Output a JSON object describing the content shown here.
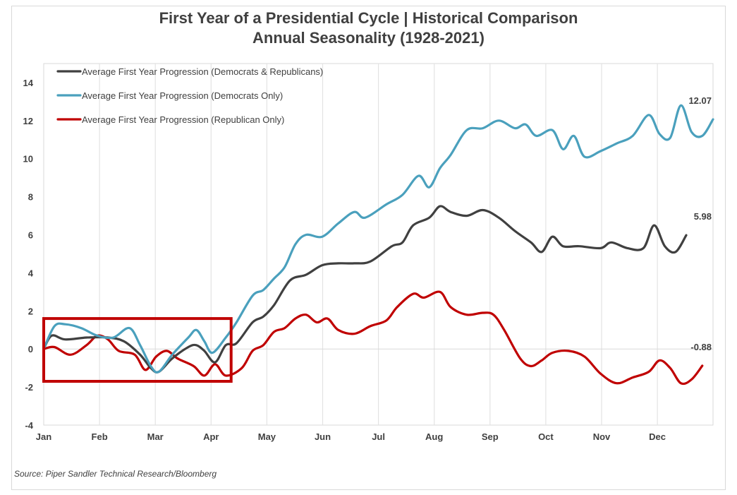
{
  "chart_data": {
    "type": "line",
    "title": "First  Year of a Presidential Cycle | Historical Comparison",
    "subtitle": "Annual Seasonality (1928-2021)",
    "source": "Source: Piper Sandler Technical Research/Bloomberg",
    "xlabel": "",
    "ylabel": "",
    "x_ticks": [
      "Jan",
      "Feb",
      "Mar",
      "Apr",
      "May",
      "Jun",
      "Jul",
      "Aug",
      "Sep",
      "Oct",
      "Nov",
      "Dec"
    ],
    "y_ticks": [
      "14",
      "12",
      "10",
      "8",
      "6",
      "4",
      "2",
      "0",
      "-2",
      "-4"
    ],
    "ylim": [
      -4,
      15
    ],
    "xlim": [
      0,
      12
    ],
    "grid": "vertical",
    "legend_position": "top-left",
    "highlight_box": {
      "x_range": [
        0,
        3.5
      ],
      "y_range": [
        -1.7,
        1.6
      ],
      "color": "#c00000"
    },
    "series": [
      {
        "name": "Average First Year Progression (Democrats & Republicans)",
        "color": "#404040",
        "end_label": "5.98",
        "points": [
          [
            0,
            0
          ],
          [
            0.15,
            0.7
          ],
          [
            0.4,
            0.5
          ],
          [
            0.8,
            0.6
          ],
          [
            1.2,
            0.6
          ],
          [
            1.5,
            0.4
          ],
          [
            1.8,
            -0.3
          ],
          [
            2.0,
            -1.0
          ],
          [
            2.15,
            -1.2
          ],
          [
            2.4,
            -0.5
          ],
          [
            2.7,
            0.1
          ],
          [
            2.85,
            0.2
          ],
          [
            3.0,
            -0.1
          ],
          [
            3.2,
            -0.7
          ],
          [
            3.4,
            0.2
          ],
          [
            3.6,
            0.3
          ],
          [
            3.9,
            1.4
          ],
          [
            4.1,
            1.7
          ],
          [
            4.3,
            2.3
          ],
          [
            4.6,
            3.6
          ],
          [
            4.9,
            3.9
          ],
          [
            5.2,
            4.4
          ],
          [
            5.5,
            4.5
          ],
          [
            5.8,
            4.5
          ],
          [
            6.1,
            4.6
          ],
          [
            6.5,
            5.4
          ],
          [
            6.7,
            5.6
          ],
          [
            6.9,
            6.5
          ],
          [
            7.2,
            6.9
          ],
          [
            7.4,
            7.5
          ],
          [
            7.6,
            7.2
          ],
          [
            7.9,
            7.0
          ],
          [
            8.2,
            7.3
          ],
          [
            8.5,
            6.9
          ],
          [
            8.8,
            6.2
          ],
          [
            9.1,
            5.6
          ],
          [
            9.3,
            5.1
          ],
          [
            9.5,
            5.9
          ],
          [
            9.7,
            5.4
          ],
          [
            10.0,
            5.4
          ],
          [
            10.4,
            5.3
          ],
          [
            10.6,
            5.6
          ],
          [
            10.9,
            5.3
          ],
          [
            11.2,
            5.3
          ],
          [
            11.4,
            6.5
          ],
          [
            11.6,
            5.4
          ],
          [
            11.8,
            5.1
          ],
          [
            12.0,
            5.98
          ]
        ]
      },
      {
        "name": "Average First Year Progression (Democrats Only)",
        "color": "#4aa0bd",
        "end_label": "12.07",
        "points": [
          [
            0,
            0
          ],
          [
            0.2,
            1.2
          ],
          [
            0.4,
            1.3
          ],
          [
            0.7,
            1.1
          ],
          [
            1.0,
            0.7
          ],
          [
            1.3,
            0.6
          ],
          [
            1.6,
            1.1
          ],
          [
            1.8,
            0.2
          ],
          [
            2.0,
            -0.9
          ],
          [
            2.15,
            -1.2
          ],
          [
            2.4,
            -0.3
          ],
          [
            2.7,
            0.6
          ],
          [
            2.85,
            1.0
          ],
          [
            3.0,
            0.4
          ],
          [
            3.15,
            -0.2
          ],
          [
            3.4,
            0.6
          ],
          [
            3.6,
            1.4
          ],
          [
            3.9,
            2.8
          ],
          [
            4.1,
            3.1
          ],
          [
            4.3,
            3.7
          ],
          [
            4.5,
            4.3
          ],
          [
            4.7,
            5.5
          ],
          [
            4.9,
            6.0
          ],
          [
            5.2,
            5.9
          ],
          [
            5.5,
            6.6
          ],
          [
            5.8,
            7.2
          ],
          [
            6.0,
            6.9
          ],
          [
            6.4,
            7.6
          ],
          [
            6.7,
            8.1
          ],
          [
            7.0,
            9.1
          ],
          [
            7.2,
            8.5
          ],
          [
            7.4,
            9.5
          ],
          [
            7.6,
            10.2
          ],
          [
            7.9,
            11.5
          ],
          [
            8.2,
            11.6
          ],
          [
            8.5,
            12.0
          ],
          [
            8.8,
            11.6
          ],
          [
            9.0,
            11.8
          ],
          [
            9.2,
            11.2
          ],
          [
            9.5,
            11.5
          ],
          [
            9.7,
            10.5
          ],
          [
            9.9,
            11.2
          ],
          [
            10.1,
            10.1
          ],
          [
            10.4,
            10.4
          ],
          [
            10.7,
            10.8
          ],
          [
            11.0,
            11.2
          ],
          [
            11.3,
            12.3
          ],
          [
            11.5,
            11.3
          ],
          [
            11.7,
            11.1
          ],
          [
            11.9,
            12.8
          ],
          [
            12.1,
            11.4
          ],
          [
            12.3,
            11.2
          ],
          [
            12.5,
            12.07
          ]
        ]
      },
      {
        "name": "Average First Year Progression (Republican Only)",
        "color": "#c00000",
        "end_label": "-0.88",
        "points": [
          [
            0,
            0
          ],
          [
            0.2,
            0.1
          ],
          [
            0.5,
            -0.3
          ],
          [
            0.8,
            0.2
          ],
          [
            1.0,
            0.7
          ],
          [
            1.2,
            0.5
          ],
          [
            1.4,
            -0.1
          ],
          [
            1.7,
            -0.3
          ],
          [
            1.9,
            -1.1
          ],
          [
            2.1,
            -0.4
          ],
          [
            2.3,
            -0.1
          ],
          [
            2.5,
            -0.5
          ],
          [
            2.8,
            -0.9
          ],
          [
            3.0,
            -1.4
          ],
          [
            3.2,
            -0.8
          ],
          [
            3.4,
            -1.4
          ],
          [
            3.7,
            -1.0
          ],
          [
            3.9,
            -0.1
          ],
          [
            4.1,
            0.2
          ],
          [
            4.3,
            0.9
          ],
          [
            4.5,
            1.1
          ],
          [
            4.7,
            1.6
          ],
          [
            4.9,
            1.8
          ],
          [
            5.1,
            1.4
          ],
          [
            5.3,
            1.6
          ],
          [
            5.5,
            1.0
          ],
          [
            5.8,
            0.8
          ],
          [
            6.1,
            1.2
          ],
          [
            6.4,
            1.5
          ],
          [
            6.6,
            2.2
          ],
          [
            6.9,
            2.9
          ],
          [
            7.1,
            2.7
          ],
          [
            7.4,
            3.0
          ],
          [
            7.6,
            2.2
          ],
          [
            7.9,
            1.8
          ],
          [
            8.2,
            1.9
          ],
          [
            8.4,
            1.8
          ],
          [
            8.6,
            1.0
          ],
          [
            8.9,
            -0.5
          ],
          [
            9.1,
            -0.9
          ],
          [
            9.3,
            -0.6
          ],
          [
            9.5,
            -0.2
          ],
          [
            9.8,
            -0.1
          ],
          [
            10.1,
            -0.4
          ],
          [
            10.4,
            -1.3
          ],
          [
            10.7,
            -1.8
          ],
          [
            11.0,
            -1.5
          ],
          [
            11.3,
            -1.2
          ],
          [
            11.5,
            -0.6
          ],
          [
            11.7,
            -1.0
          ],
          [
            11.9,
            -1.8
          ],
          [
            12.1,
            -1.6
          ],
          [
            12.3,
            -0.88
          ]
        ]
      }
    ]
  }
}
